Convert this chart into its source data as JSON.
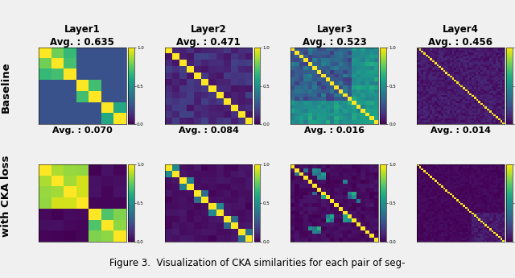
{
  "title": "Figure 3.  Visualization of CKA similarities for each pair of seg-",
  "row_labels": [
    "Baseline",
    "with CKA loss"
  ],
  "col_labels": [
    "Layer1",
    "Layer2",
    "Layer3",
    "Layer4"
  ],
  "top_avgs": [
    "Avg. : 0.635",
    "Avg. : 0.471",
    "Avg. : 0.523",
    "Avg. : 0.456"
  ],
  "mid_avgs": [
    "Avg. : 0.070",
    "Avg. : 0.084",
    "Avg. : 0.016",
    "Avg. : 0.014"
  ],
  "sizes": [
    7,
    12,
    20,
    40
  ],
  "colormap": "viridis",
  "bg_color": "#f0f0f0",
  "label_fontsize": 8.5,
  "title_fontsize": 8.5
}
